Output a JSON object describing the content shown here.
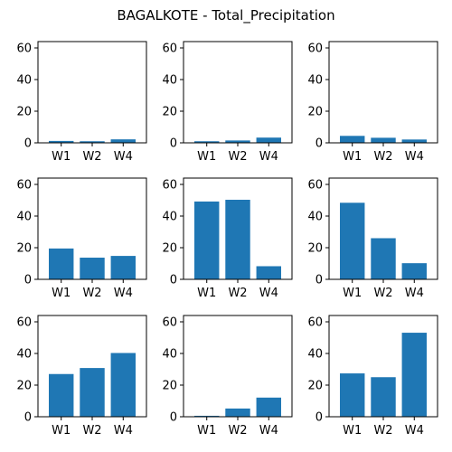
{
  "title": "BAGALKOTE - Total_Precipitation",
  "chart_data": [
    {
      "type": "bar",
      "categories": [
        "W1",
        "W2",
        "W4"
      ],
      "values": [
        1.2,
        1.0,
        2.2
      ],
      "ylim": [
        0,
        64
      ],
      "yticks": [
        0,
        20,
        40,
        60
      ],
      "color": "#1f77b4"
    },
    {
      "type": "bar",
      "categories": [
        "W1",
        "W2",
        "W4"
      ],
      "values": [
        1.0,
        1.5,
        3.3
      ],
      "ylim": [
        0,
        64
      ],
      "yticks": [
        0,
        20,
        40,
        60
      ],
      "color": "#1f77b4"
    },
    {
      "type": "bar",
      "categories": [
        "W1",
        "W2",
        "W4"
      ],
      "values": [
        4.4,
        3.2,
        2.1
      ],
      "ylim": [
        0,
        64
      ],
      "yticks": [
        0,
        20,
        40,
        60
      ],
      "color": "#1f77b4"
    },
    {
      "type": "bar",
      "categories": [
        "W1",
        "W2",
        "W4"
      ],
      "values": [
        19.5,
        13.7,
        14.8
      ],
      "ylim": [
        0,
        64
      ],
      "yticks": [
        0,
        20,
        40,
        60
      ],
      "color": "#1f77b4"
    },
    {
      "type": "bar",
      "categories": [
        "W1",
        "W2",
        "W4"
      ],
      "values": [
        49.2,
        50.3,
        8.3
      ],
      "ylim": [
        0,
        64
      ],
      "yticks": [
        0,
        20,
        40,
        60
      ],
      "color": "#1f77b4"
    },
    {
      "type": "bar",
      "categories": [
        "W1",
        "W2",
        "W4"
      ],
      "values": [
        48.4,
        26.0,
        10.2
      ],
      "ylim": [
        0,
        64
      ],
      "yticks": [
        0,
        20,
        40,
        60
      ],
      "color": "#1f77b4"
    },
    {
      "type": "bar",
      "categories": [
        "W1",
        "W2",
        "W4"
      ],
      "values": [
        27.0,
        30.8,
        40.3
      ],
      "ylim": [
        0,
        64
      ],
      "yticks": [
        0,
        20,
        40,
        60
      ],
      "color": "#1f77b4"
    },
    {
      "type": "bar",
      "categories": [
        "W1",
        "W2",
        "W4"
      ],
      "values": [
        0.6,
        5.2,
        12.1
      ],
      "ylim": [
        0,
        64
      ],
      "yticks": [
        0,
        20,
        40,
        60
      ],
      "color": "#1f77b4"
    },
    {
      "type": "bar",
      "categories": [
        "W1",
        "W2",
        "W4"
      ],
      "values": [
        27.4,
        25.0,
        53.1
      ],
      "ylim": [
        0,
        64
      ],
      "yticks": [
        0,
        20,
        40,
        60
      ],
      "color": "#1f77b4"
    }
  ]
}
